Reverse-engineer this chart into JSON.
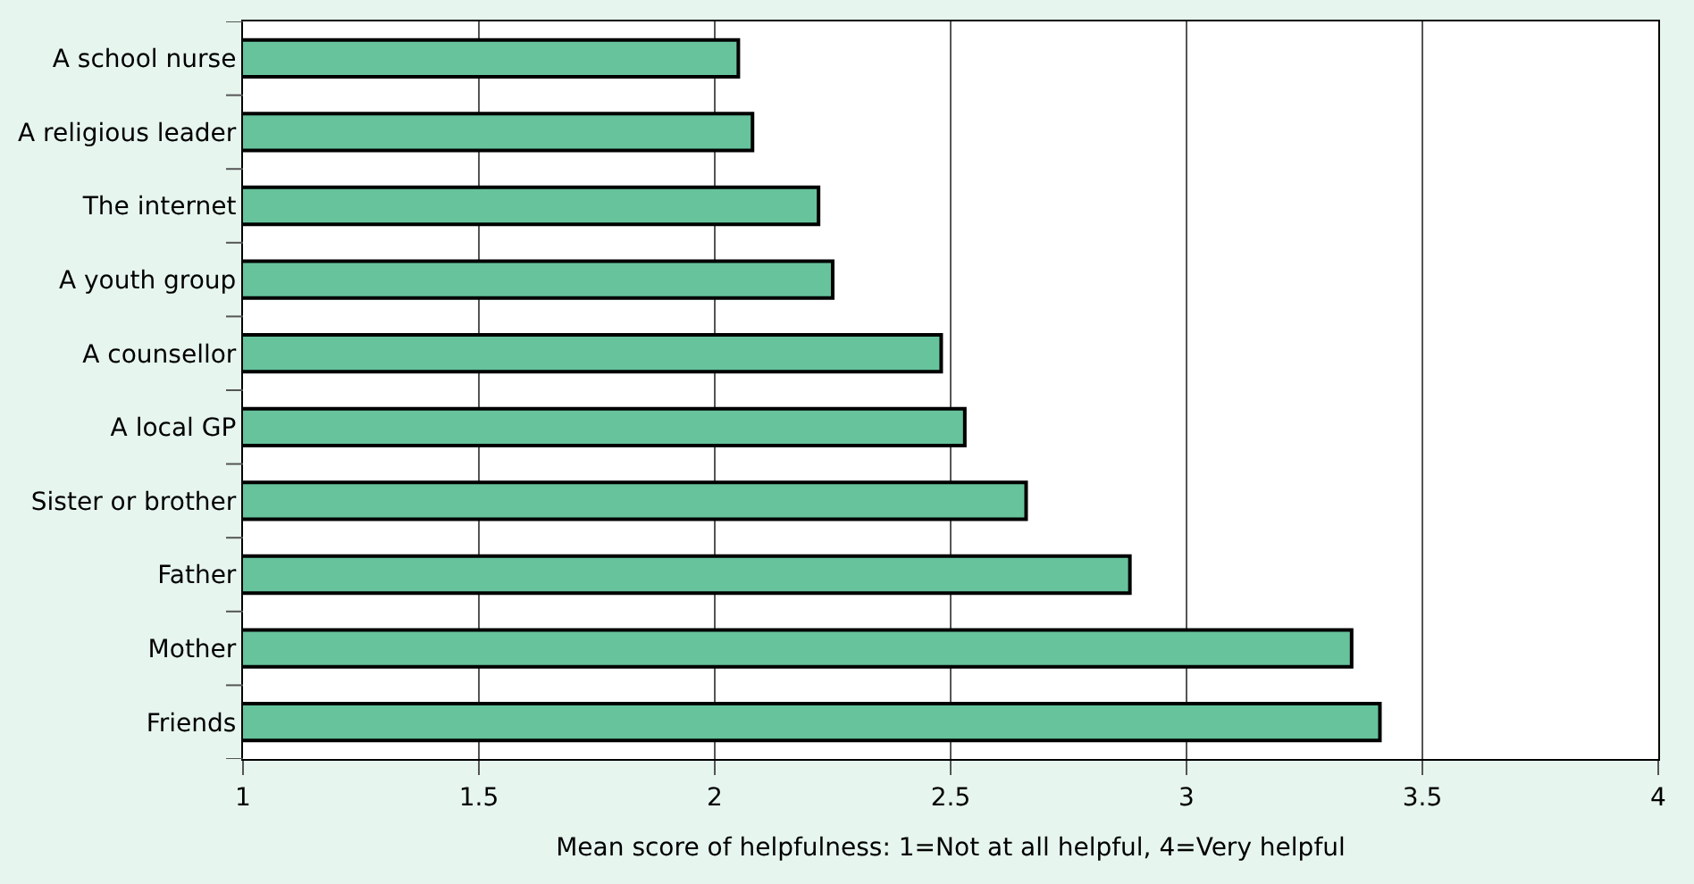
{
  "chart_data": {
    "type": "bar",
    "orientation": "horizontal",
    "xlabel": "Mean score of helpfulness: 1=Not at all helpful, 4=Very helpful",
    "categories": [
      "A school nurse",
      "A religious leader",
      "The internet",
      "A youth group",
      "A counsellor",
      "A local GP",
      "Sister or brother",
      "Father",
      "Mother",
      "Friends"
    ],
    "values": [
      2.05,
      2.08,
      2.22,
      2.25,
      2.48,
      2.53,
      2.66,
      2.88,
      3.35,
      3.41
    ],
    "color": "#66c39c",
    "xlim": [
      1,
      4
    ],
    "xticks": [
      1,
      1.5,
      2,
      2.5,
      3,
      3.5,
      4
    ],
    "grid": "x"
  }
}
